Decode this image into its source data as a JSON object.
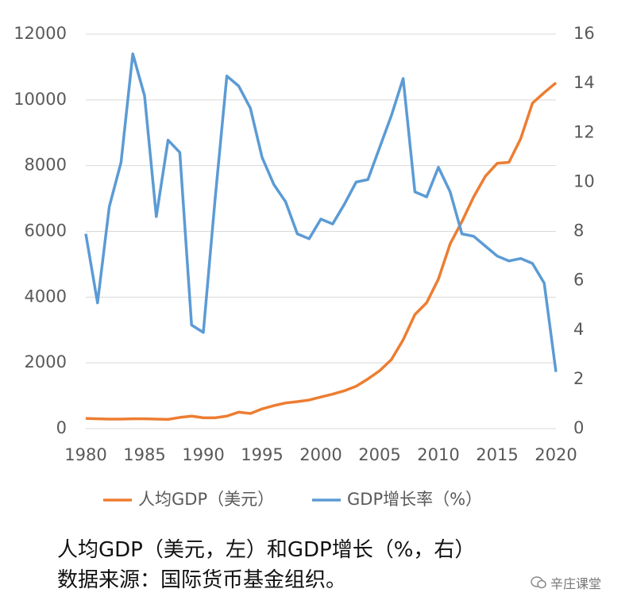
{
  "chart_data": {
    "type": "line",
    "x": [
      1980,
      1981,
      1982,
      1983,
      1984,
      1985,
      1986,
      1987,
      1988,
      1989,
      1990,
      1991,
      1992,
      1993,
      1994,
      1995,
      1996,
      1997,
      1998,
      1999,
      2000,
      2001,
      2002,
      2003,
      2004,
      2005,
      2006,
      2007,
      2008,
      2009,
      2010,
      2011,
      2012,
      2013,
      2014,
      2015,
      2016,
      2017,
      2018,
      2019,
      2020
    ],
    "series": [
      {
        "name": "人均GDP（美元）",
        "color": "#ed7d31",
        "axis": "y",
        "values": [
          310,
          300,
          290,
          290,
          300,
          300,
          290,
          280,
          340,
          380,
          330,
          330,
          380,
          500,
          460,
          600,
          700,
          780,
          820,
          870,
          960,
          1050,
          1150,
          1290,
          1510,
          1760,
          2100,
          2700,
          3470,
          3830,
          4550,
          5620,
          6300,
          7050,
          7680,
          8070,
          8100,
          8820,
          9900,
          10220,
          10520
        ]
      },
      {
        "name": "GDP增长率（%）",
        "color": "#5b9bd5",
        "axis": "y2",
        "values": [
          7.9,
          5.1,
          9.0,
          10.8,
          15.2,
          13.5,
          8.6,
          11.7,
          11.2,
          4.2,
          3.9,
          9.3,
          14.3,
          13.9,
          13.0,
          11.0,
          9.9,
          9.2,
          7.9,
          7.7,
          8.5,
          8.3,
          9.1,
          10.0,
          10.1,
          11.4,
          12.7,
          14.2,
          9.6,
          9.4,
          10.6,
          9.6,
          7.9,
          7.8,
          7.4,
          7.0,
          6.8,
          6.9,
          6.7,
          5.9,
          2.3
        ]
      }
    ],
    "xlim": [
      1980,
      2020
    ],
    "xticks": [
      1980,
      1985,
      1990,
      1995,
      2000,
      2005,
      2010,
      2015,
      2020
    ],
    "ylim": [
      0,
      12000
    ],
    "yticks": [
      0,
      2000,
      4000,
      6000,
      8000,
      10000,
      12000
    ],
    "y2lim": [
      0,
      16
    ],
    "y2ticks": [
      0,
      2,
      4,
      6,
      8,
      10,
      12,
      14,
      16
    ],
    "grid": true,
    "legend": "bottom"
  },
  "caption": [
    "人均GDP（美元，左）和GDP增长（%，右）",
    "数据来源：国际货币基金组织。"
  ],
  "watermark": "辛庄课堂"
}
